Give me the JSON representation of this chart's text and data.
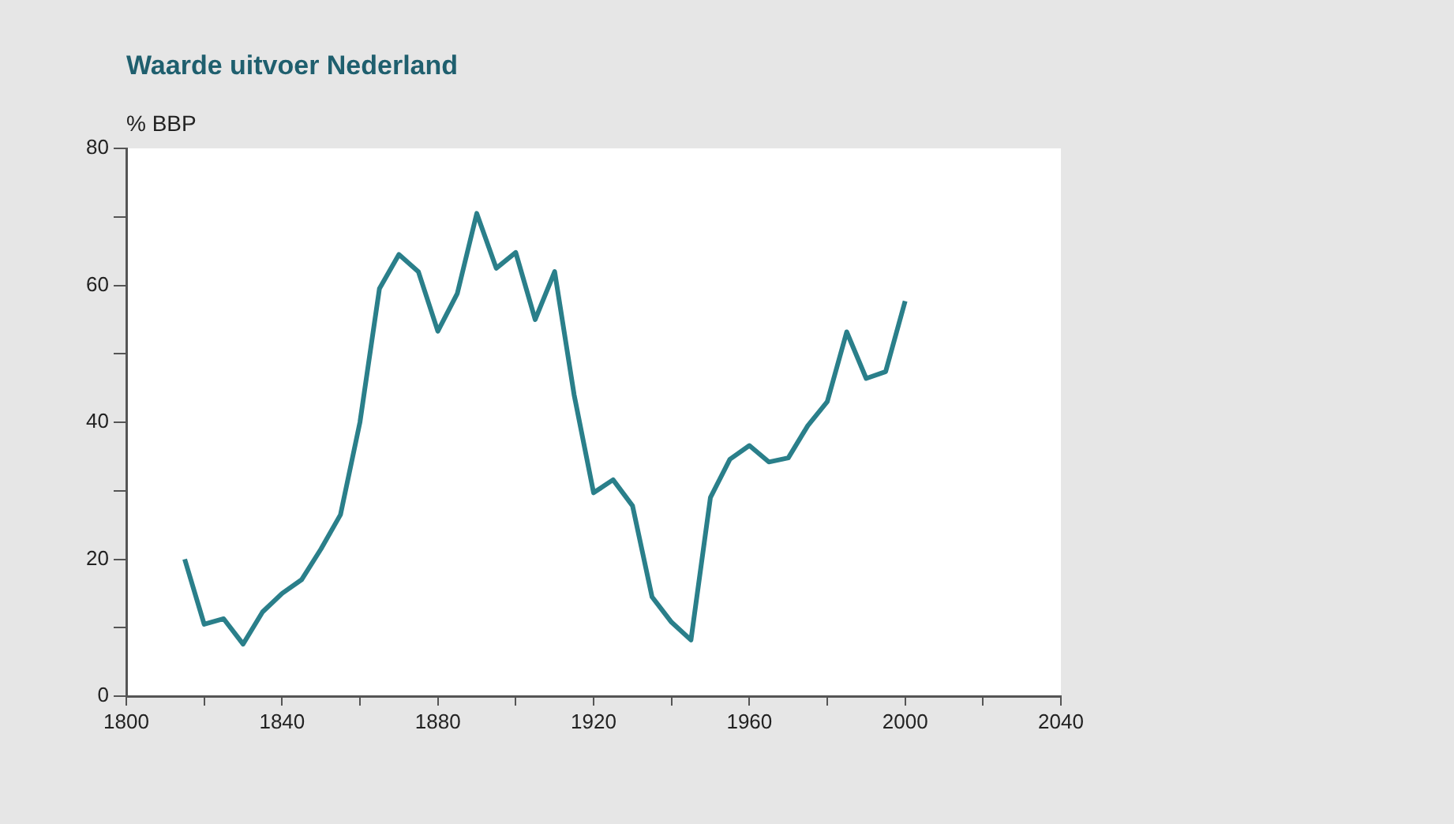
{
  "chart_data": {
    "type": "line",
    "title": "Waarde uitvoer Nederland",
    "ylabel": "% BBP",
    "x": [
      1815,
      1820,
      1825,
      1830,
      1835,
      1840,
      1845,
      1850,
      1855,
      1860,
      1865,
      1870,
      1875,
      1880,
      1885,
      1890,
      1895,
      1900,
      1905,
      1910,
      1915,
      1920,
      1925,
      1930,
      1935,
      1940,
      1945,
      1950,
      1955,
      1960,
      1965,
      1970,
      1975,
      1980,
      1985,
      1990,
      1995,
      2000
    ],
    "series": [
      {
        "color": "#2a7f8a",
        "values": [
          20,
          10.5,
          11.3,
          7.6,
          12.3,
          15,
          17,
          21.5,
          26.5,
          40,
          59.5,
          64.5,
          62,
          53.3,
          58.8,
          70.5,
          62.5,
          64.8,
          55,
          62,
          44,
          29.7,
          31.6,
          27.8,
          14.5,
          10.8,
          8.2,
          29,
          34.6,
          36.6,
          34.2,
          34.8,
          39.5,
          43,
          53.2,
          46.4,
          47.4,
          57.7
        ]
      }
    ],
    "xlim": [
      1800,
      2040
    ],
    "xticks": [
      1800,
      {
        "value": 1820,
        "label": null
      },
      1840,
      {
        "value": 1860,
        "label": null
      },
      1880,
      {
        "value": 1900,
        "label": null
      },
      1920,
      {
        "value": 1940,
        "label": null
      },
      1960,
      {
        "value": 1980,
        "label": null
      },
      2000,
      {
        "value": 2020,
        "label": null
      },
      2040
    ],
    "ylim": [
      0,
      80
    ],
    "yticks": [
      0,
      {
        "value": 10,
        "label": null
      },
      20,
      {
        "value": 30,
        "label": null
      },
      40,
      {
        "value": 50,
        "label": null
      },
      60,
      {
        "value": 70,
        "label": null
      },
      80
    ],
    "grid": false,
    "legend": false,
    "marker": "none",
    "line_style": "solid"
  }
}
